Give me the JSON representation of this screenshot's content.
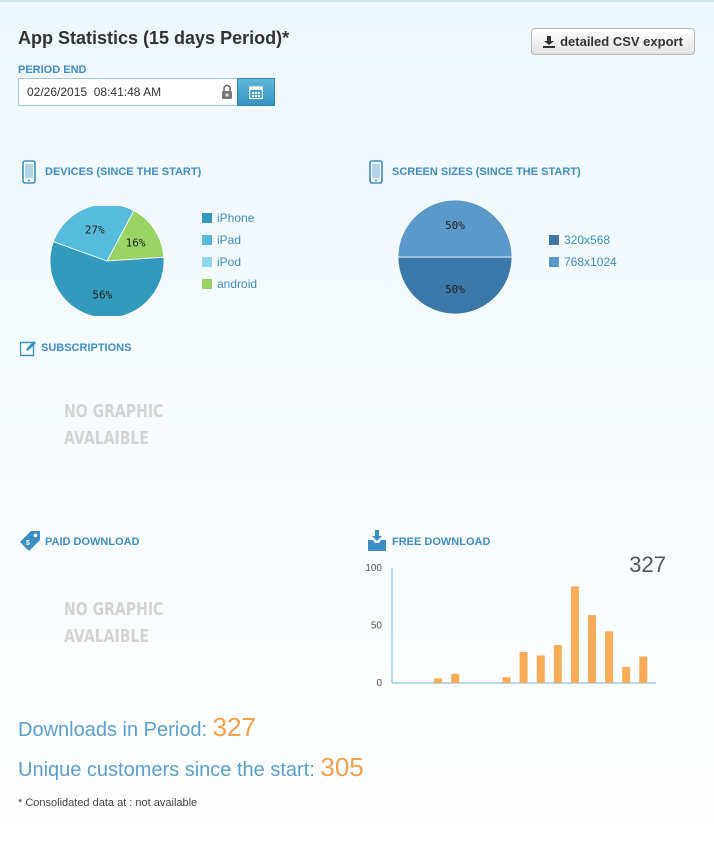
{
  "page": {
    "title": "App Statistics (15 days Period)*",
    "export_label": "detailed CSV export",
    "period_label": "PERIOD END",
    "period_value": "02/26/2015  08:41:48 AM"
  },
  "sections": {
    "devices": "DEVICES (SINCE THE START)",
    "screens": "SCREEN SIZES (SINCE THE START)",
    "subscriptions": "SUBSCRIPTIONS",
    "paid": "PAID DOWNLOAD",
    "free": "FREE DOWNLOAD",
    "no_graphic_1": "NO GRAPHIC",
    "no_graphic_2": "AVALAIBLE"
  },
  "chart_data": [
    {
      "type": "pie",
      "name": "devices",
      "labels": [
        "iPhone",
        "iPad",
        "iPod",
        "android"
      ],
      "values": [
        56,
        27,
        0,
        16
      ],
      "display_labels": [
        "56%",
        "27%",
        "",
        "16%"
      ],
      "colors": [
        "#3399bd",
        "#56bbdc",
        "#8fd8ef",
        "#9ad465"
      ]
    },
    {
      "type": "pie",
      "name": "screen-sizes",
      "labels": [
        "320x568",
        "768x1024"
      ],
      "values": [
        50,
        50
      ],
      "display_labels": [
        "50%",
        "50%"
      ],
      "colors": [
        "#3a78a9",
        "#5a99cc"
      ]
    },
    {
      "type": "bar",
      "name": "free-download",
      "total_label": "327",
      "x": [
        1,
        2,
        3,
        4,
        5,
        6,
        7,
        8,
        9,
        10,
        11,
        12,
        13,
        14,
        15
      ],
      "values": [
        0,
        4,
        8,
        0,
        0,
        5,
        27,
        24,
        33,
        84,
        59,
        45,
        14,
        23,
        0
      ],
      "yticks": [
        "0",
        "50",
        "100"
      ],
      "ylim": [
        0,
        100
      ],
      "bar_color": "#f9ad5a",
      "axis_color": "#8ec5e4"
    }
  ],
  "stats": {
    "downloads_label": "Downloads in Period:",
    "downloads_value": "327",
    "unique_label": "Unique customers since the start:",
    "unique_value": "305",
    "footnote": "* Consolidated data at : not available"
  }
}
